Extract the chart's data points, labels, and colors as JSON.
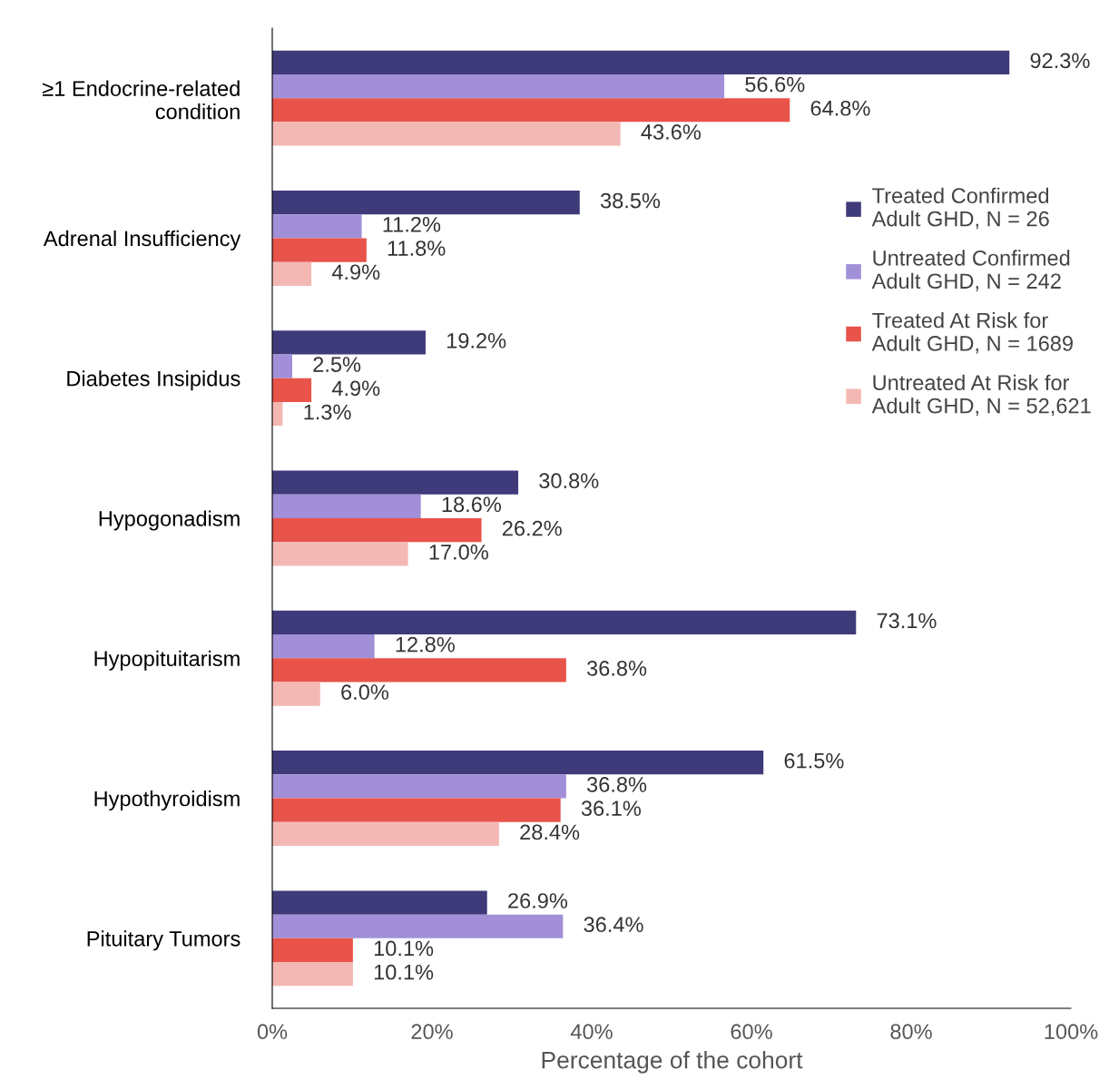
{
  "chart_data": {
    "type": "bar",
    "orientation": "horizontal",
    "categories": [
      "≥1 Endocrine-related\ncondition",
      "Adrenal Insufficiency",
      "Diabetes Insipidus",
      "Hypogonadism",
      "Hypopituitarism",
      "Hypothyroidism",
      "Pituitary Tumors"
    ],
    "series": [
      {
        "name": "Treated Confirmed\nAdult GHD, N = 26",
        "color": "#3f3a7a",
        "values": [
          92.3,
          38.5,
          19.2,
          30.8,
          73.1,
          61.5,
          26.9
        ],
        "value_labels": [
          "92.3%",
          "38.5%",
          "19.2%",
          "30.8%",
          "73.1%",
          "61.5%",
          "26.9%"
        ]
      },
      {
        "name": "Untreated Confirmed\nAdult GHD, N = 242",
        "color": "#a18fd8",
        "values": [
          56.6,
          11.2,
          2.5,
          18.6,
          12.8,
          36.8,
          36.4
        ],
        "value_labels": [
          "56.6%",
          "11.2%",
          "2.5%",
          "18.6%",
          "12.8%",
          "36.8%",
          "36.4%"
        ]
      },
      {
        "name": "Treated At Risk for\nAdult GHD, N = 1689",
        "color": "#e8534a",
        "values": [
          64.8,
          11.8,
          4.9,
          26.2,
          36.8,
          36.1,
          10.1
        ],
        "value_labels": [
          "64.8%",
          "11.8%",
          "4.9%",
          "26.2%",
          "36.8%",
          "36.1%",
          "10.1%"
        ]
      },
      {
        "name": "Untreated At Risk for\nAdult GHD, N = 52,621",
        "color": "#f4b8b4",
        "values": [
          43.6,
          4.9,
          1.3,
          17.0,
          6.0,
          28.4,
          10.1
        ],
        "value_labels": [
          "43.6%",
          "4.9%",
          "1.3%",
          "17.0%",
          "6.0%",
          "28.4%",
          "10.1%"
        ]
      }
    ],
    "xlabel": "Percentage of the cohort",
    "xlim": [
      0,
      100
    ],
    "xticks": [
      {
        "value": 0,
        "label": "0%"
      },
      {
        "value": 20,
        "label": "20%"
      },
      {
        "value": 40,
        "label": "40%"
      },
      {
        "value": 60,
        "label": "60%"
      },
      {
        "value": 80,
        "label": "80%"
      },
      {
        "value": 100,
        "label": "100%"
      }
    ],
    "grid": false,
    "legend": "right"
  }
}
